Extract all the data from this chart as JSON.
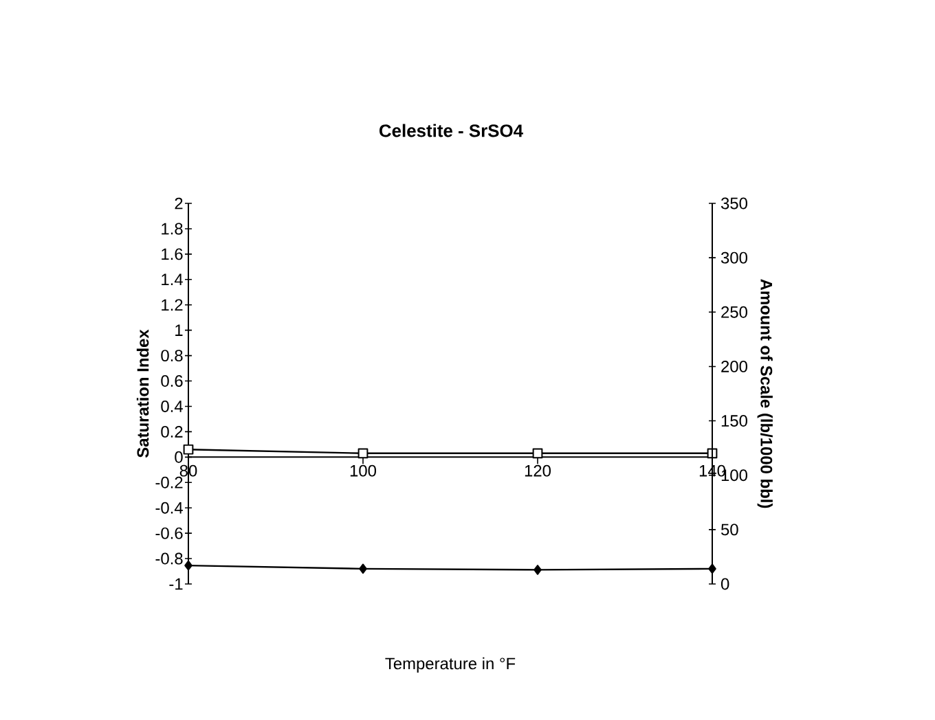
{
  "chart_data": {
    "type": "line",
    "title": "Celestite - SrSO4",
    "xlabel": "Temperature in °F",
    "ylabel": "Saturation Index",
    "y2label": "Amount of Scale (lb/1000 bbl)",
    "x": [
      80,
      100,
      120,
      140
    ],
    "series": [
      {
        "color": "#000000",
        "marker": "square",
        "values": [
          0.06,
          0.03,
          0.03,
          0.03
        ]
      },
      {
        "color": "#000000",
        "marker": "diamond",
        "axis": "y2",
        "values": [
          17,
          14,
          13,
          14
        ]
      }
    ],
    "xlim": [
      80,
      140
    ],
    "xticks": [
      80,
      100,
      120,
      140
    ],
    "ylim": [
      -1,
      2
    ],
    "yticks": [
      -1,
      -0.8,
      -0.6,
      -0.4,
      -0.2,
      0,
      0.2,
      0.4,
      0.6,
      0.8,
      1,
      1.2,
      1.4,
      1.6,
      1.8,
      2
    ],
    "y2lim": [
      0,
      350
    ],
    "y2ticks": [
      0,
      50,
      100,
      150,
      200,
      250,
      300,
      350
    ],
    "grid": false
  }
}
